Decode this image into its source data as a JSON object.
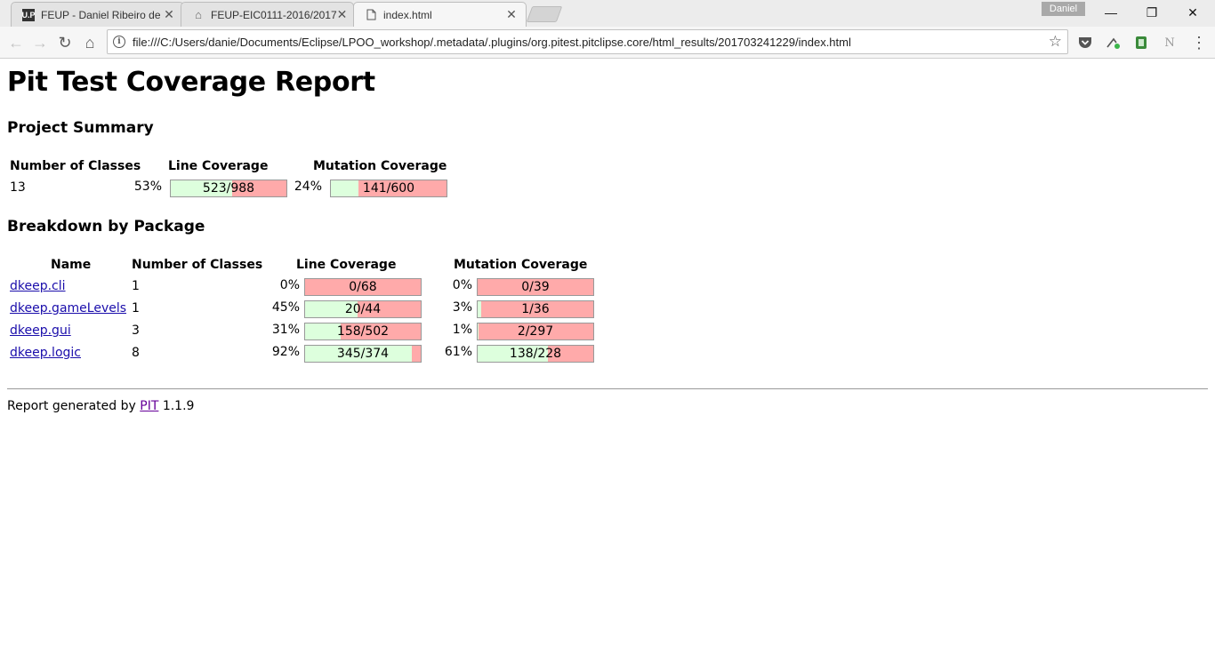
{
  "browser": {
    "tabs": [
      {
        "title": "FEUP - Daniel Ribeiro de",
        "favicon": "U.P"
      },
      {
        "title": "FEUP-EIC0111-2016/2017",
        "favicon": "mortarboard-icon"
      },
      {
        "title": "index.html",
        "favicon": "document-icon"
      }
    ],
    "user": "Daniel",
    "url": "file:///C:/Users/danie/Documents/Eclipse/LPOO_workshop/.metadata/.plugins/org.pitest.pitclipse.core/html_results/201703241229/index.html",
    "window_buttons": {
      "minimize": "—",
      "restore": "❐",
      "close": "✕"
    },
    "nav_icons": {
      "back": "←",
      "forward": "→",
      "reload": "↻",
      "home": "⌂",
      "star": "☆",
      "menu": "⋮"
    }
  },
  "report": {
    "title": "Pit Test Coverage Report",
    "summary_heading": "Project Summary",
    "summary_headers": {
      "classes": "Number of Classes",
      "line": "Line Coverage",
      "mutation": "Mutation Coverage"
    },
    "summary": {
      "classes": "13",
      "line_pct": "53%",
      "line_label": "523/988",
      "line_fraction": 0.53,
      "mut_pct": "24%",
      "mut_label": "141/600",
      "mut_fraction": 0.24
    },
    "breakdown_heading": "Breakdown by Package",
    "breakdown_headers": {
      "name": "Name",
      "classes": "Number of Classes",
      "line": "Line Coverage",
      "mutation": "Mutation Coverage"
    },
    "packages": [
      {
        "name": "dkeep.cli",
        "classes": "1",
        "line_pct": "0%",
        "line_label": "0/68",
        "line_fraction": 0.0,
        "mut_pct": "0%",
        "mut_label": "0/39",
        "mut_fraction": 0.0
      },
      {
        "name": "dkeep.gameLevels",
        "classes": "1",
        "line_pct": "45%",
        "line_label": "20/44",
        "line_fraction": 0.45,
        "mut_pct": "3%",
        "mut_label": "1/36",
        "mut_fraction": 0.03
      },
      {
        "name": "dkeep.gui",
        "classes": "3",
        "line_pct": "31%",
        "line_label": "158/502",
        "line_fraction": 0.31,
        "mut_pct": "1%",
        "mut_label": "2/297",
        "mut_fraction": 0.01
      },
      {
        "name": "dkeep.logic",
        "classes": "8",
        "line_pct": "92%",
        "line_label": "345/374",
        "line_fraction": 0.92,
        "mut_pct": "61%",
        "mut_label": "138/228",
        "mut_fraction": 0.61
      }
    ],
    "footer_prefix": "Report generated by",
    "footer_link": "PIT",
    "footer_version": "1.1.9"
  },
  "colors": {
    "covered": "#ddffdd",
    "uncovered": "#ffaaaa"
  }
}
